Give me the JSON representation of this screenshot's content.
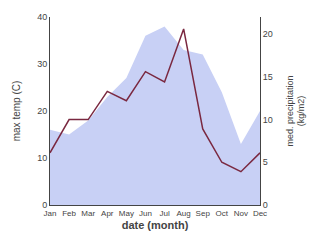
{
  "chart_data": {
    "type": "area",
    "xlabel": "date (month)",
    "ylabel": "max temp (C)",
    "y2label": "med. precipitation\n(kg/m2)",
    "categories": [
      "Jan",
      "Feb",
      "Mar",
      "Apr",
      "May",
      "Jun",
      "Jul",
      "Aug",
      "Sep",
      "Oct",
      "Nov",
      "Dec"
    ],
    "series": [
      {
        "type": "area",
        "color": "#c8d0f5",
        "values": [
          16,
          15,
          18,
          23,
          27,
          36,
          38,
          33,
          32,
          24,
          13,
          20
        ]
      },
      {
        "type": "line",
        "color": "#7a2840",
        "axis": "y2",
        "values": [
          6.1,
          10.0,
          10.0,
          13.3,
          12.2,
          15.6,
          14.4,
          20.6,
          8.9,
          5.0,
          3.9,
          6.1
        ]
      }
    ],
    "ylim": [
      0,
      40
    ],
    "yticks": [
      0,
      10,
      20,
      30,
      40
    ],
    "y2lim": [
      0,
      22
    ],
    "y2ticks": [
      0,
      5,
      10,
      15,
      20
    ],
    "grid": false
  }
}
